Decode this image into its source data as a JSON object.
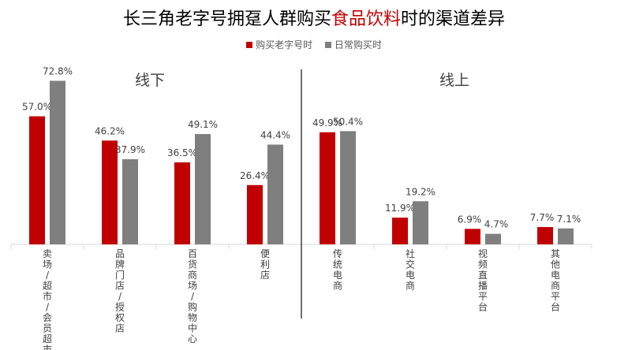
{
  "title": {
    "prefix": "长三角老字号拥趸人群购买",
    "highlight": "食品饮料",
    "suffix": "时的渠道差异"
  },
  "colors": {
    "series1": "#c00000",
    "series2": "#7f7f7f",
    "highlight": "#c00000"
  },
  "chart_data": {
    "type": "bar",
    "groups": [
      {
        "label": "线下",
        "categories": [
          "卖场/超市/会员超市",
          "品牌门店/授权店",
          "百货商场/购物中心",
          "便利店"
        ]
      },
      {
        "label": "线上",
        "categories": [
          "传统电商",
          "社交电商",
          "视频直播平台",
          "其他电商平台"
        ]
      }
    ],
    "categories": [
      "卖场/超市/会员超市",
      "品牌门店/授权店",
      "百货商场/购物中心",
      "便利店",
      "传统电商",
      "社交电商",
      "视频直播平台",
      "其他电商平台"
    ],
    "series": [
      {
        "name": "购买老字号时",
        "values": [
          57.0,
          46.2,
          36.5,
          26.4,
          49.9,
          11.9,
          6.9,
          7.7
        ],
        "labels": [
          "57.0%",
          "46.2%",
          "36.5%",
          "26.4%",
          "49.9%",
          "11.9%",
          "6.9%",
          "7.7%"
        ]
      },
      {
        "name": "日常购买时",
        "values": [
          72.8,
          37.9,
          49.1,
          44.4,
          50.4,
          19.2,
          4.7,
          7.1
        ],
        "labels": [
          "72.8%",
          "37.9%",
          "49.1%",
          "44.4%",
          "50.4%",
          "19.2%",
          "4.7%",
          "7.1%"
        ]
      }
    ],
    "ylim": [
      0,
      80
    ],
    "legend_position": "top",
    "grid": false
  }
}
